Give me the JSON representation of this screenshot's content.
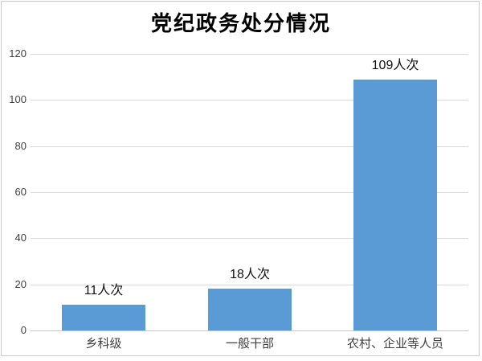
{
  "chart_data": {
    "type": "bar",
    "title": "党纪政务处分情况",
    "categories": [
      "乡科级",
      "一般干部",
      "农村、企业等人员"
    ],
    "values": [
      11,
      18,
      109
    ],
    "data_labels": [
      "11人次",
      "18人次",
      "109人次"
    ],
    "xlabel": "",
    "ylabel": "",
    "ylim": [
      0,
      120
    ],
    "yticks": [
      0,
      20,
      40,
      60,
      80,
      100,
      120
    ],
    "grid": true,
    "legend": false,
    "colors": {
      "bar": "#5B9BD5",
      "gridline": "#D9D9D9",
      "axis_line": "#C6C6C6",
      "tick_label": "#404040",
      "category_label": "#404040",
      "data_label": "#111111",
      "title": "#000000",
      "frame_border": "#CBCBCB",
      "background": "#FFFFFF"
    }
  }
}
